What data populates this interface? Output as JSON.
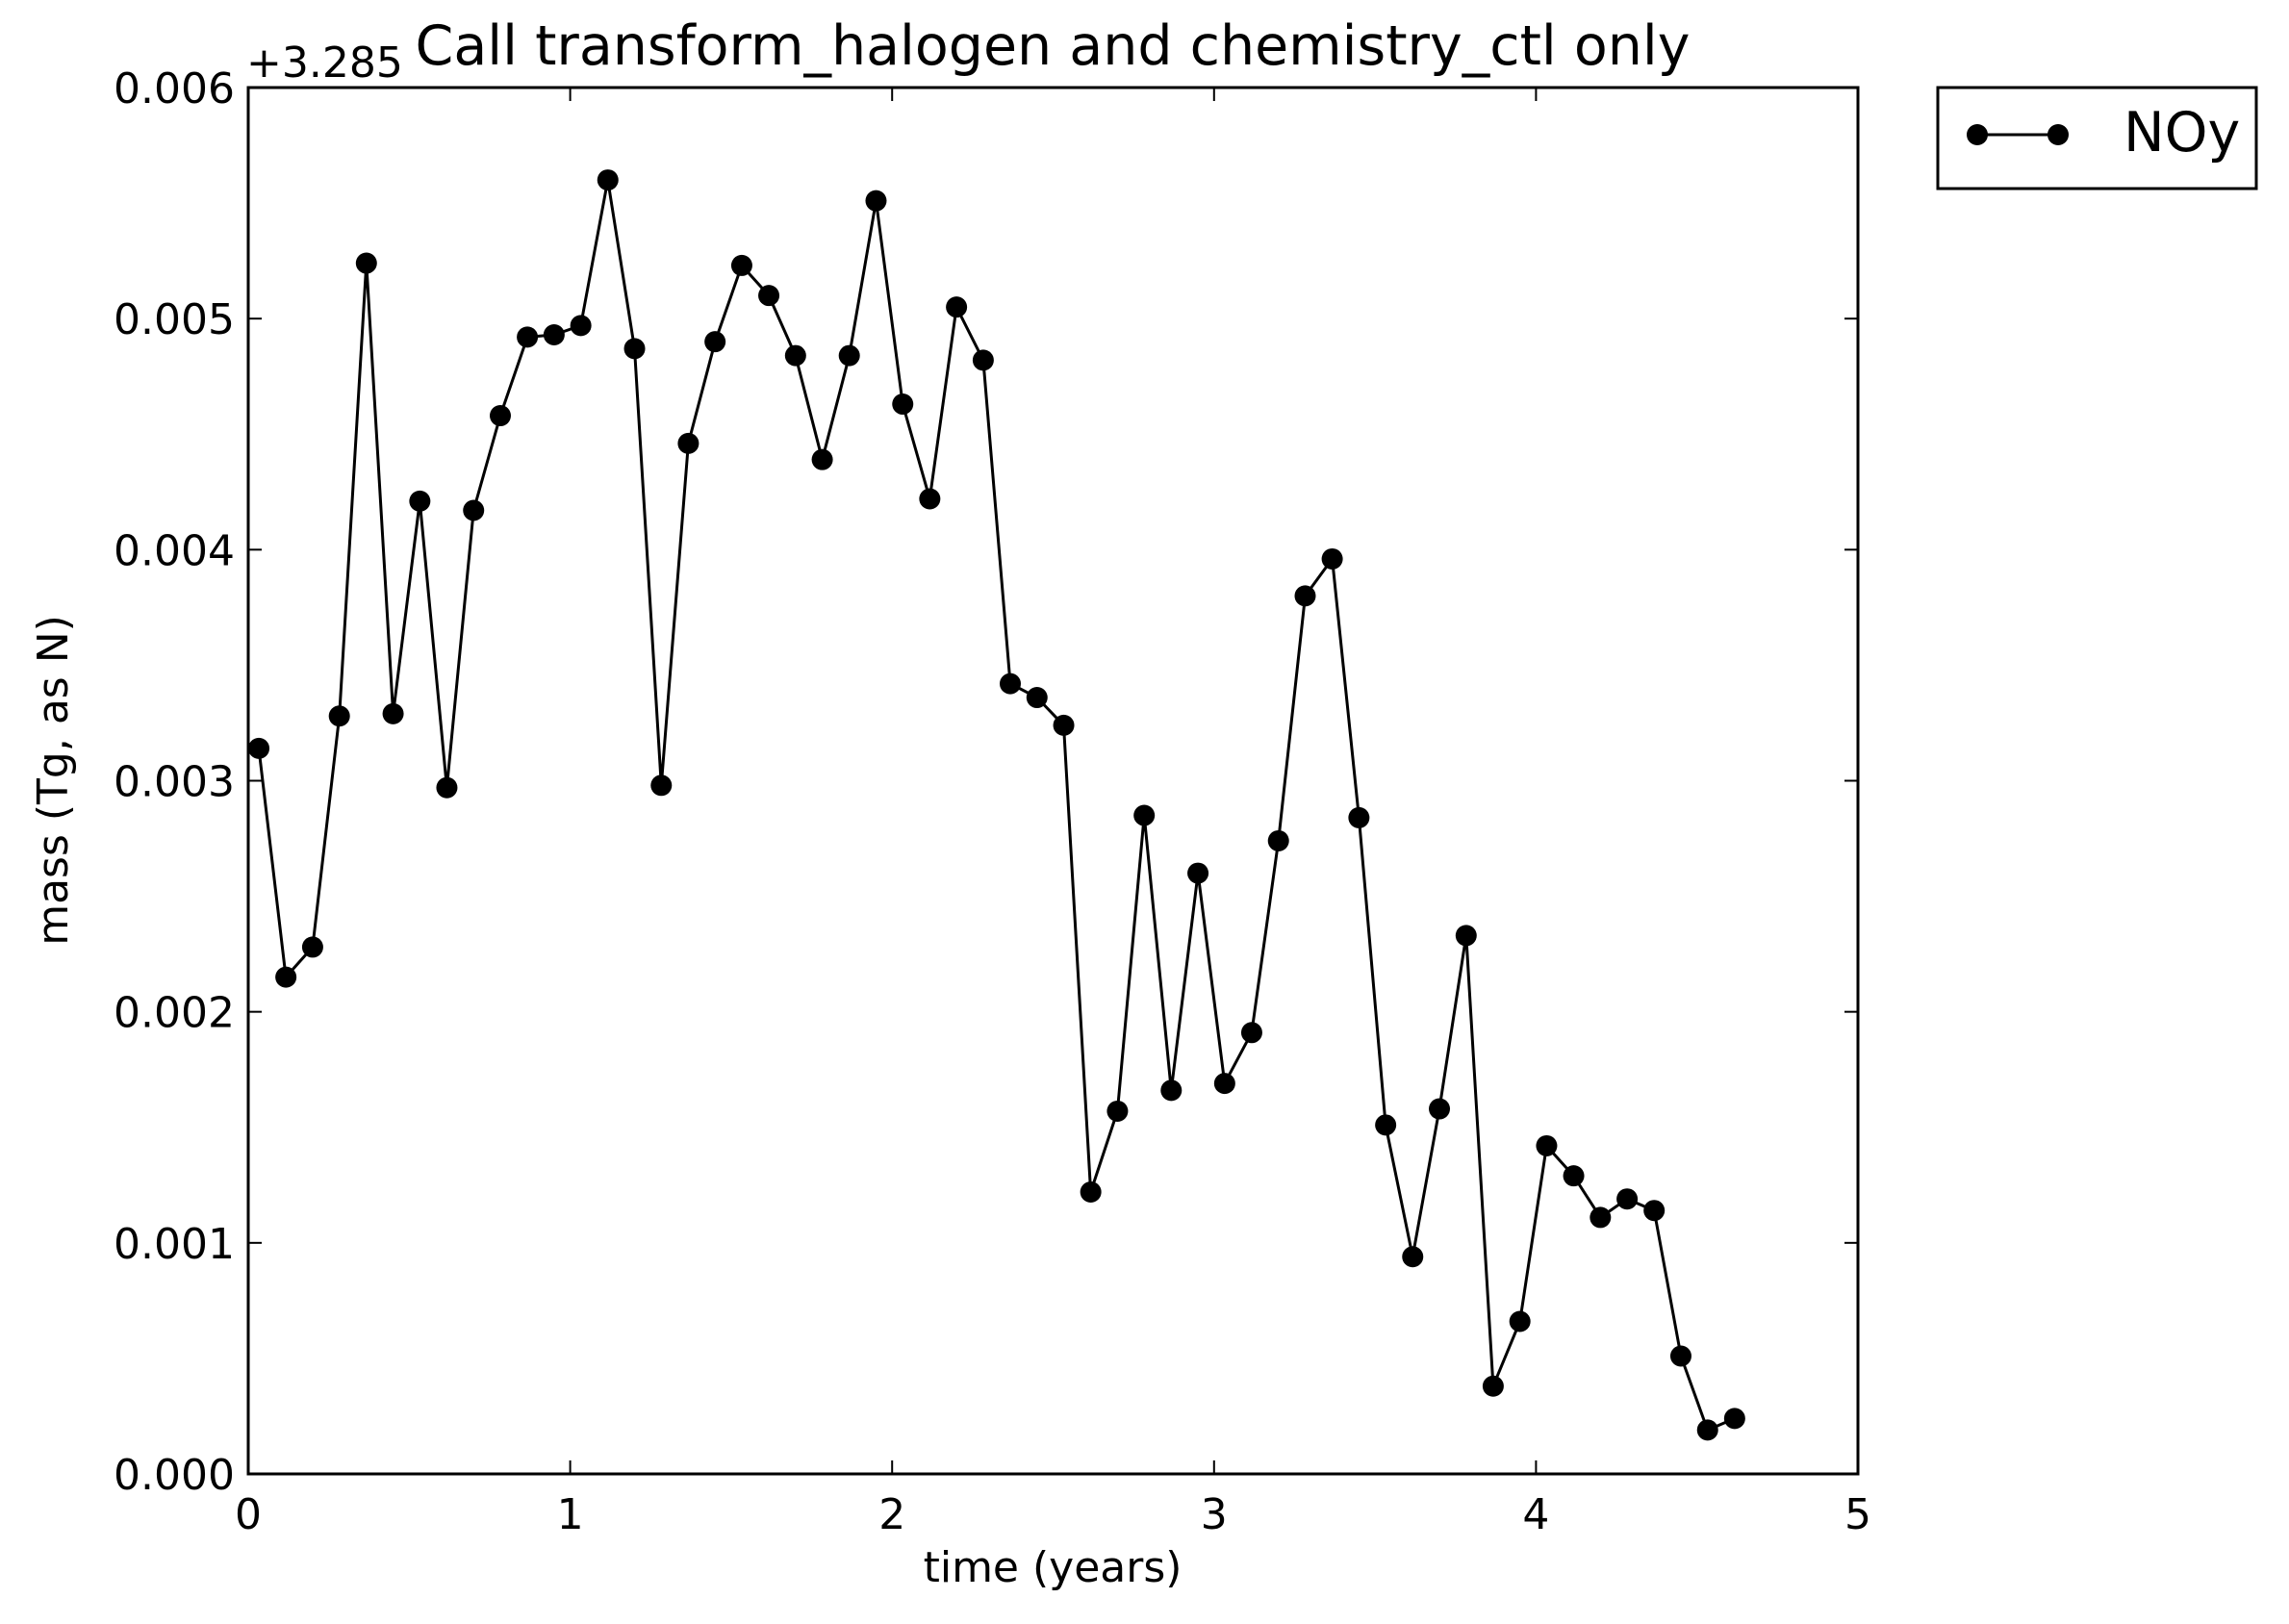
{
  "chart_data": {
    "type": "line",
    "title": "Call transform_halogen and chemistry_ctl only",
    "offset_label": "+3.285",
    "xlabel": "time (years)",
    "ylabel": "mass (Tg, as N)",
    "xlim": [
      0,
      5
    ],
    "ylim": [
      0.0,
      0.006
    ],
    "xticks": [
      {
        "value": 0,
        "label": "0"
      },
      {
        "value": 1,
        "label": "1"
      },
      {
        "value": 2,
        "label": "2"
      },
      {
        "value": 3,
        "label": "3"
      },
      {
        "value": 4,
        "label": "4"
      },
      {
        "value": 5,
        "label": "5"
      }
    ],
    "yticks": [
      {
        "value": 0.0,
        "label": "0.000"
      },
      {
        "value": 0.001,
        "label": "0.001"
      },
      {
        "value": 0.002,
        "label": "0.002"
      },
      {
        "value": 0.003,
        "label": "0.003"
      },
      {
        "value": 0.004,
        "label": "0.004"
      },
      {
        "value": 0.005,
        "label": "0.005"
      },
      {
        "value": 0.006,
        "label": "0.006"
      }
    ],
    "grid": false,
    "legend_position": "outside-top-right",
    "series": [
      {
        "name": "NOy",
        "color": "#000000",
        "marker": "circle",
        "x": [
          0.033,
          0.117,
          0.2,
          0.283,
          0.367,
          0.45,
          0.533,
          0.617,
          0.7,
          0.783,
          0.867,
          0.95,
          1.033,
          1.117,
          1.2,
          1.283,
          1.367,
          1.45,
          1.533,
          1.617,
          1.7,
          1.783,
          1.867,
          1.95,
          2.033,
          2.117,
          2.2,
          2.283,
          2.367,
          2.45,
          2.533,
          2.617,
          2.7,
          2.783,
          2.867,
          2.95,
          3.033,
          3.117,
          3.2,
          3.283,
          3.367,
          3.45,
          3.533,
          3.617,
          3.7,
          3.783,
          3.867,
          3.95,
          4.033,
          4.117,
          4.2,
          4.283,
          4.367,
          4.45,
          4.533,
          4.617
        ],
        "y": [
          0.00314,
          0.00215,
          0.00228,
          0.00328,
          0.00524,
          0.00329,
          0.00421,
          0.00297,
          0.00417,
          0.00458,
          0.00492,
          0.00493,
          0.00497,
          0.0056,
          0.00487,
          0.00298,
          0.00446,
          0.0049,
          0.00523,
          0.0051,
          0.00484,
          0.00439,
          0.00484,
          0.00551,
          0.00463,
          0.00422,
          0.00505,
          0.00482,
          0.00342,
          0.00336,
          0.00324,
          0.00122,
          0.00157,
          0.00285,
          0.00166,
          0.0026,
          0.00169,
          0.00191,
          0.00274,
          0.0038,
          0.00396,
          0.00284,
          0.00151,
          0.00094,
          0.00158,
          0.00233,
          0.00038,
          0.00066,
          0.00142,
          0.00129,
          0.00111,
          0.00119,
          0.00114,
          0.00051,
          0.00019,
          0.00024
        ]
      }
    ]
  }
}
